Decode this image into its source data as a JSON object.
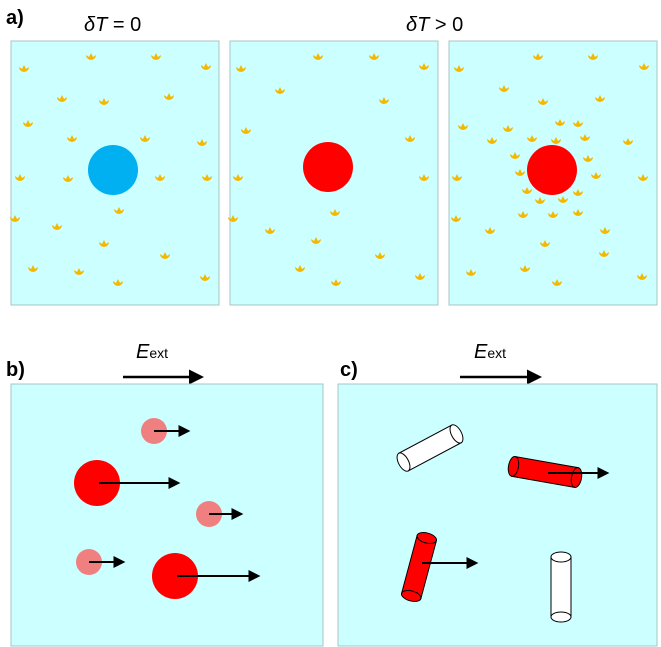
{
  "labels": {
    "a": "a)",
    "b": "b)",
    "c": "c)"
  },
  "panel_a": {
    "left_symbol": "δT",
    "left_relation": " = 0",
    "right_symbol": "δT",
    "right_relation": " > 0"
  },
  "field": {
    "symbol": "E",
    "subscript": "ext"
  },
  "colors": {
    "background": "#ccffff",
    "panel_border": "#a9c4c4",
    "particle_cold": "#00b0f0",
    "particle_hot": "#ff0000",
    "particle_small": "#f08080",
    "molecules": "#f5b800",
    "arrow": "#000000",
    "rod_white": "#ffffff"
  },
  "icons": [
    "molecule-icon",
    "arrow-icon",
    "cylinder-icon"
  ]
}
